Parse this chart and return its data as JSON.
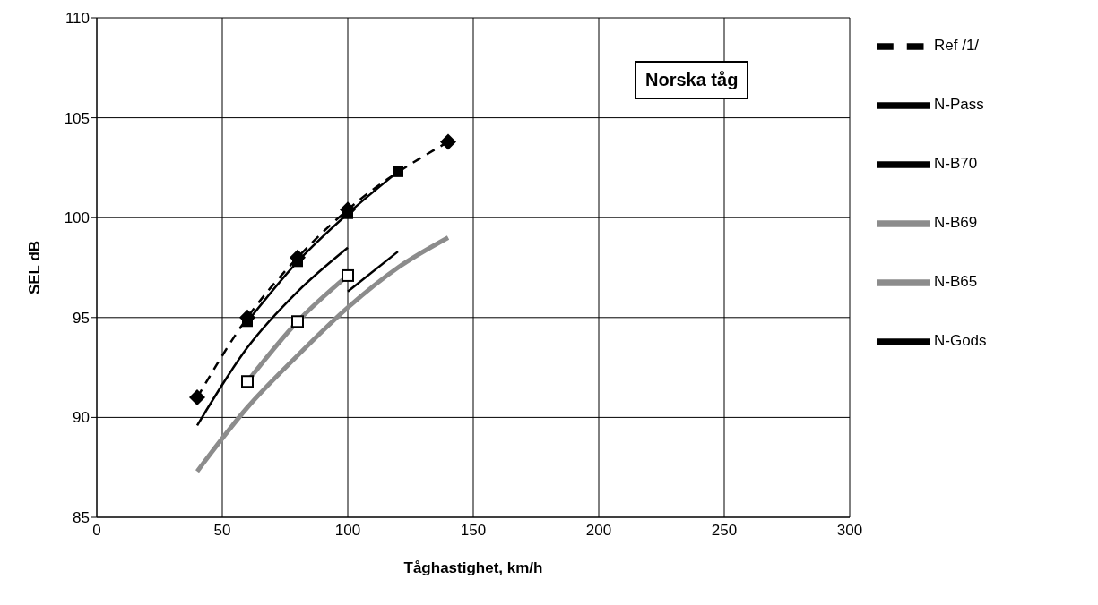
{
  "chart_data": {
    "type": "line",
    "xlabel": "Tåghastighet, km/h",
    "ylabel": "SEL dB",
    "annotations": [
      "Norska tåg"
    ],
    "xlim": [
      0,
      300
    ],
    "xticks": [
      0,
      50,
      100,
      150,
      200,
      250,
      300
    ],
    "ylim": [
      85,
      110
    ],
    "yticks": [
      85,
      90,
      95,
      100,
      105,
      110
    ],
    "grid": true,
    "legend": "right",
    "series": [
      {
        "name": "Ref /1/",
        "color": "#000000",
        "line_style": "dashed",
        "marker": "diamond",
        "x": [
          40,
          60,
          80,
          100,
          140
        ],
        "values": [
          91,
          95,
          98,
          100.4,
          103.8
        ]
      },
      {
        "name": "N-Pass",
        "color": "#000000",
        "line_style": "solid",
        "marker": "square",
        "x": [
          60,
          80,
          100,
          120
        ],
        "values": [
          94.8,
          97.8,
          100.2,
          102.3
        ]
      },
      {
        "name": "N-B70",
        "color": "#000000",
        "line_style": "solid",
        "marker": "none",
        "x": [
          100,
          120
        ],
        "values": [
          96.3,
          98.3
        ]
      },
      {
        "name": "N-B69",
        "color": "#8c8c8c",
        "line_style": "solid",
        "marker": "none",
        "x": [
          40,
          60,
          80,
          100,
          120,
          140
        ],
        "values": [
          87.3,
          90.5,
          93.1,
          95.5,
          97.5,
          99
        ]
      },
      {
        "name": "N-B65",
        "color": "#8c8c8c",
        "line_style": "solid",
        "marker": "square-open",
        "x": [
          60,
          80,
          100
        ],
        "values": [
          91.8,
          94.8,
          97.1
        ]
      },
      {
        "name": "N-Gods",
        "color": "#000000",
        "line_style": "solid",
        "marker": "none",
        "x": [
          40,
          60,
          80,
          100
        ],
        "values": [
          89.6,
          93.5,
          96.3,
          98.5
        ]
      }
    ]
  }
}
